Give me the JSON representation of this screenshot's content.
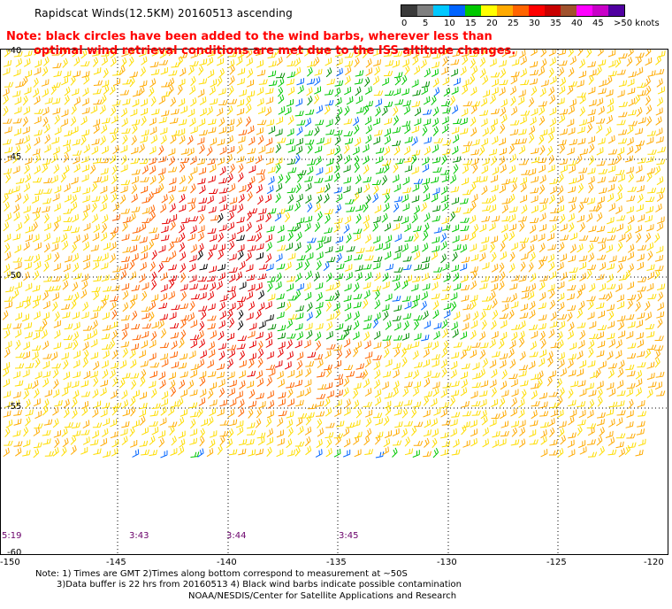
{
  "title": "Rapidscat Winds(12.5KM) 20160513 ascending",
  "note_line1": "Note: black circles have been added to the wind barbs, wherever less than",
  "note_line2": "optimal wind retrieval conditions are met due to the ISS altitude changes.",
  "scale": {
    "colors": [
      "#3a3a3a",
      "#7f7f7f",
      "#00c8ff",
      "#0064ff",
      "#00c800",
      "#ffff00",
      "#ffaa00",
      "#ff6400",
      "#ff0000",
      "#c80000",
      "#a0522d",
      "#ff00ff",
      "#c800c8",
      "#5000a0"
    ],
    "labels": [
      "0",
      "5",
      "10",
      "15",
      "20",
      "25",
      "30",
      "35",
      "40",
      "45",
      ">50 knots"
    ]
  },
  "lat_labels": [
    "-40",
    "-45",
    "-50",
    "-55",
    "-60"
  ],
  "lon_labels": [
    "-150",
    "-145",
    "-140",
    "-135",
    "-130",
    "-125",
    "-120"
  ],
  "time_labels": [
    "5:19",
    "3:43",
    "3:44",
    "3:45"
  ],
  "footer": {
    "line1": "Note: 1) Times are GMT 2)Times along bottom correspond to measurement at ~50S",
    "line2": "3)Data buffer is 22 hrs from 20160513 4) Black wind barbs indicate possible contamination",
    "line3": "NOAA/NESDIS/Center for Satellite Applications and Research"
  }
}
